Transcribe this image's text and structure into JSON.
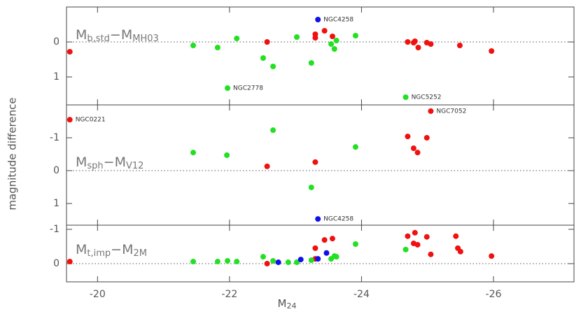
{
  "chart_data": [
    {
      "type": "scatter",
      "title": [
        "M",
        "b,std",
        "−M",
        "MH03"
      ],
      "xlim": [
        -19.53,
        -27.22
      ],
      "xticks": [
        -20,
        -22,
        -24,
        -26
      ],
      "ylim": [
        -1.0,
        1.8
      ],
      "yticks": [
        0,
        1
      ],
      "hline": 0,
      "series": [
        {
          "color": "#f01010",
          "x": [
            -19.58,
            -22.57,
            -23.3,
            -23.3,
            -23.44,
            -23.56,
            -24.7,
            -24.79,
            -24.81,
            -24.86,
            -24.99,
            -25.05,
            -25.49,
            -25.97
          ],
          "y": [
            0.28,
            0,
            -0.22,
            -0.12,
            -0.32,
            -0.16,
            0,
            0.02,
            -0.02,
            0.16,
            0.02,
            0.06,
            0.1,
            0.26
          ]
        },
        {
          "color": "#22e022",
          "x": [
            -21.45,
            -21.82,
            -22.11,
            -21.97,
            -22.51,
            -22.66,
            -23.02,
            -23.24,
            -23.54,
            -23.59,
            -23.62,
            -23.91,
            -24.67
          ],
          "y": [
            0.1,
            0.16,
            -0.1,
            1.32,
            0.46,
            0.7,
            -0.14,
            0.6,
            0.06,
            0.2,
            -0.04,
            -0.18,
            1.58
          ],
          "labels": [
            null,
            null,
            null,
            "NGC2778",
            null,
            null,
            null,
            null,
            null,
            null,
            null,
            null,
            "NGC5252"
          ]
        },
        {
          "color": "#1010e8",
          "x": [
            -23.34
          ],
          "y": [
            -0.64
          ],
          "labels": [
            "NGC4258"
          ]
        }
      ]
    },
    {
      "type": "scatter",
      "title": [
        "M",
        "sph",
        "−M",
        "V12"
      ],
      "ylabel": "magnitude difference",
      "xlim": [
        -19.53,
        -27.22
      ],
      "xticks": [
        -20,
        -22,
        -24,
        -26
      ],
      "ylim": [
        -2.0,
        1.66
      ],
      "yticks": [
        -1,
        0,
        1
      ],
      "hline": 0,
      "series": [
        {
          "color": "#f01010",
          "x": [
            -19.58,
            -22.57,
            -23.3,
            -24.7,
            -24.79,
            -24.85,
            -24.99,
            -25.05
          ],
          "y": [
            -1.55,
            -0.13,
            -0.26,
            -1.04,
            -0.68,
            -0.55,
            -1.0,
            -1.81
          ],
          "labels": [
            "NGC0221",
            null,
            null,
            null,
            null,
            null,
            null,
            "NGC7052"
          ]
        },
        {
          "color": "#22e022",
          "x": [
            -21.45,
            -21.96,
            -22.66,
            -23.24,
            -23.91
          ],
          "y": [
            -0.55,
            -0.47,
            -1.23,
            0.51,
            -0.72
          ]
        },
        {
          "color": "#1010e8",
          "x": [
            -23.34
          ],
          "y": [
            1.47
          ],
          "labels": [
            "NGC4258"
          ]
        }
      ]
    },
    {
      "type": "scatter",
      "title": [
        "M",
        "t,imp",
        "−M",
        "2M"
      ],
      "xlabel": [
        "M",
        "24"
      ],
      "xlim": [
        -19.53,
        -27.22
      ],
      "xticks": [
        -20,
        -22,
        -24,
        -26
      ],
      "ylim": [
        -1.12,
        0.53
      ],
      "yticks": [
        -1,
        0
      ],
      "hline": 0,
      "series": [
        {
          "color": "#f01010",
          "x": [
            -19.58,
            -22.57,
            -23.3,
            -23.3,
            -23.44,
            -23.56,
            -24.7,
            -24.79,
            -24.81,
            -24.85,
            -24.99,
            -25.05,
            -25.43,
            -25.46,
            -25.5,
            -25.97
          ],
          "y": [
            -0.06,
            0,
            -0.45,
            -0.14,
            -0.69,
            -0.73,
            -0.8,
            -0.59,
            -0.9,
            -0.55,
            -0.78,
            -0.27,
            -0.8,
            -0.45,
            -0.35,
            -0.22
          ]
        },
        {
          "color": "#22e022",
          "x": [
            -21.45,
            -21.82,
            -21.97,
            -22.11,
            -22.51,
            -22.66,
            -22.89,
            -23.02,
            -23.24,
            -23.54,
            -23.59,
            -23.62,
            -23.91,
            -24.67
          ],
          "y": [
            -0.06,
            -0.06,
            -0.08,
            -0.06,
            -0.2,
            -0.08,
            -0.04,
            -0.04,
            -0.1,
            -0.14,
            -0.22,
            -0.2,
            -0.57,
            -0.41
          ]
        },
        {
          "color": "#1010e8",
          "x": [
            -22.74,
            -23.08,
            -23.34,
            -23.47
          ],
          "y": [
            -0.04,
            -0.12,
            -0.14,
            -0.31
          ]
        }
      ]
    }
  ]
}
